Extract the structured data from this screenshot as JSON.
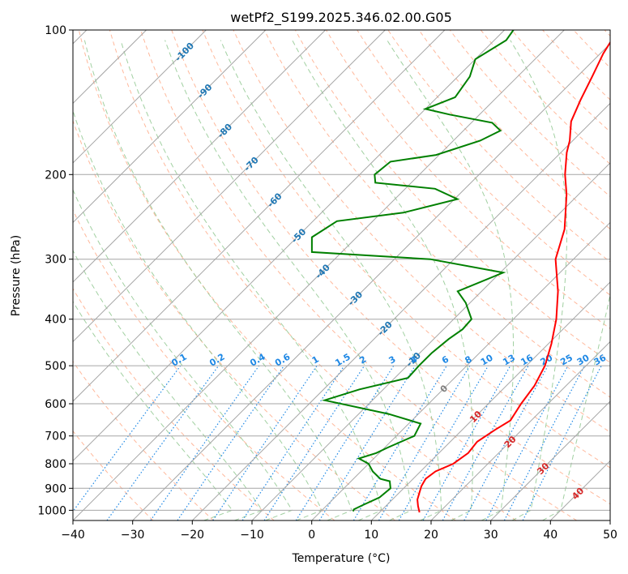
{
  "chart_data": {
    "type": "skew-t",
    "title": "wetPf2_S199.2025.346.02.00.G05",
    "xlabel": "Temperature (°C)",
    "ylabel": "Pressure (hPa)",
    "xlim": [
      -40,
      50
    ],
    "ylim": [
      1050,
      100
    ],
    "y_scale": "log",
    "grid": true,
    "x_ticks": [
      -40,
      -30,
      -20,
      -10,
      0,
      10,
      20,
      30,
      40,
      50
    ],
    "y_ticks": [
      100,
      200,
      300,
      400,
      500,
      600,
      700,
      800,
      900,
      1000
    ],
    "colors": {
      "temperature": "#ff0000",
      "dewpoint": "#008000",
      "isotherm": "#a6a6a6",
      "dry_adiabat": "#ffa07a",
      "moist_adiabat": "#90c890",
      "mixing_ratio": "#1e88e5",
      "label_blue": "#1f77b4",
      "label_red": "#d62728"
    },
    "series": [
      {
        "name": "Temperature",
        "points": [
          [
            16.7,
            1010
          ],
          [
            15.4,
            980
          ],
          [
            14.2,
            950
          ],
          [
            13.4,
            920
          ],
          [
            12.6,
            890
          ],
          [
            12.1,
            860
          ],
          [
            12.5,
            830
          ],
          [
            14.2,
            800
          ],
          [
            14.9,
            760
          ],
          [
            14.5,
            720
          ],
          [
            15.5,
            680
          ],
          [
            16.5,
            650
          ],
          [
            15.5,
            600
          ],
          [
            14.7,
            550
          ],
          [
            13.1,
            500
          ],
          [
            10.5,
            450
          ],
          [
            7.2,
            400
          ],
          [
            2.8,
            350
          ],
          [
            -3.0,
            300
          ],
          [
            -6.5,
            260
          ],
          [
            -12.0,
            220
          ],
          [
            -15.6,
            200
          ],
          [
            -19.0,
            180
          ],
          [
            -20.5,
            170
          ],
          [
            -23.5,
            155
          ],
          [
            -25.5,
            140
          ],
          [
            -27.5,
            125
          ],
          [
            -29.5,
            112
          ],
          [
            -31.0,
            100
          ]
        ]
      },
      {
        "name": "Dewpoint",
        "points": [
          [
            5.4,
            1005
          ],
          [
            5.2,
            995
          ],
          [
            6.0,
            975
          ],
          [
            7.5,
            940
          ],
          [
            7.8,
            900
          ],
          [
            6.5,
            870
          ],
          [
            4.5,
            860
          ],
          [
            2.0,
            830
          ],
          [
            0.0,
            800
          ],
          [
            -2.5,
            780
          ],
          [
            -0.5,
            760
          ],
          [
            0.5,
            740
          ],
          [
            3.0,
            700
          ],
          [
            2.0,
            660
          ],
          [
            -5.0,
            630
          ],
          [
            -18.0,
            590
          ],
          [
            -14.0,
            560
          ],
          [
            -7.8,
            530
          ],
          [
            -8.0,
            500
          ],
          [
            -8.0,
            470
          ],
          [
            -7.5,
            440
          ],
          [
            -6.8,
            420
          ],
          [
            -7.0,
            400
          ],
          [
            -10.7,
            370
          ],
          [
            -14.0,
            350
          ],
          [
            -9.5,
            320
          ],
          [
            -24.0,
            300
          ],
          [
            -45.0,
            290
          ],
          [
            -47.5,
            270
          ],
          [
            -46.0,
            250
          ],
          [
            -36.3,
            240
          ],
          [
            -29.5,
            225
          ],
          [
            -35.0,
            214
          ],
          [
            -46.0,
            208
          ],
          [
            -47.5,
            200
          ],
          [
            -47.0,
            188
          ],
          [
            -40.5,
            182
          ],
          [
            -35.5,
            170
          ],
          [
            -33.8,
            162
          ],
          [
            -36.5,
            156
          ],
          [
            -45.0,
            150
          ],
          [
            -50.0,
            146
          ],
          [
            -47.0,
            138
          ],
          [
            -48.0,
            125
          ],
          [
            -50.0,
            115
          ],
          [
            -48.0,
            105
          ],
          [
            -48.5,
            100
          ]
        ]
      }
    ],
    "isotherm_labels": [
      {
        "t": -100,
        "p": 111,
        "text": "-100"
      },
      {
        "t": -90,
        "p": 134,
        "text": "-90"
      },
      {
        "t": -80,
        "p": 162,
        "text": "-80"
      },
      {
        "t": -70,
        "p": 190,
        "text": "-70"
      },
      {
        "t": -60,
        "p": 226,
        "text": "-60"
      },
      {
        "t": -50,
        "p": 268,
        "text": "-50"
      },
      {
        "t": -40,
        "p": 318,
        "text": "-40"
      },
      {
        "t": -30,
        "p": 362,
        "text": "-30"
      },
      {
        "t": -20,
        "p": 418,
        "text": "-20"
      },
      {
        "t": -10,
        "p": 485,
        "text": "-10"
      },
      {
        "t": 0,
        "p": 558,
        "text": "0"
      },
      {
        "t": 10,
        "p": 638,
        "text": "10"
      },
      {
        "t": 20,
        "p": 720,
        "text": "20"
      },
      {
        "t": 30,
        "p": 818,
        "text": "30"
      },
      {
        "t": 40,
        "p": 922,
        "text": "40"
      }
    ],
    "mixing_ratio_lines": [
      0.1,
      0.2,
      0.4,
      0.6,
      1,
      1.5,
      2,
      3,
      4,
      6,
      8,
      10,
      13,
      16,
      20,
      25,
      30,
      36
    ],
    "mixing_ratio_label_pressure": 500
  }
}
